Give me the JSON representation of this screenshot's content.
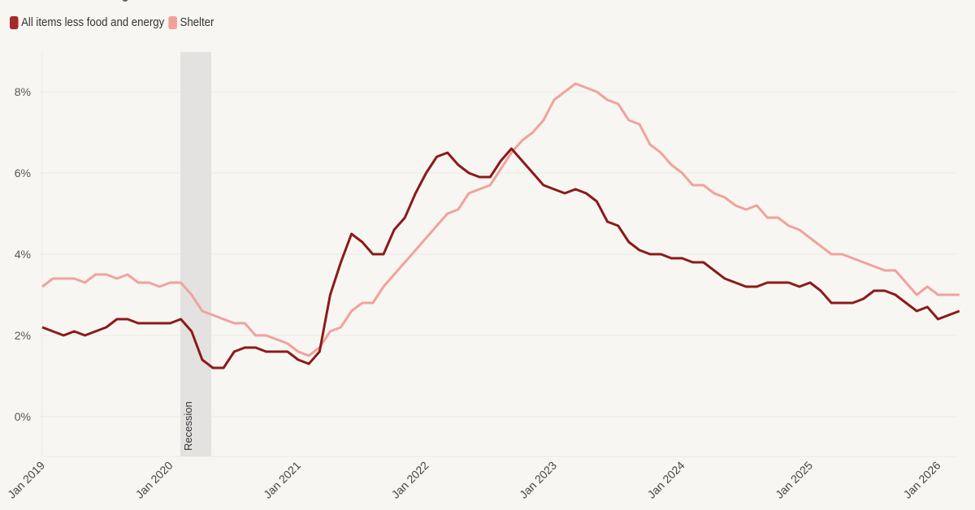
{
  "legend": {
    "items": [
      {
        "label": "All items less food and energy",
        "color": "#a52a2a"
      },
      {
        "label": "Shelter",
        "color": "#f4a09a"
      }
    ]
  },
  "annotations": {
    "recession_label": "Recession"
  },
  "chart_data": {
    "type": "line",
    "title": "",
    "xlabel": "",
    "ylabel": "",
    "ylim": [
      -1,
      9
    ],
    "y_ticks": [
      "0%",
      "2%",
      "4%",
      "6%",
      "8%"
    ],
    "x_ticks": [
      "Jan 2019",
      "Jan 2020",
      "Jan 2021",
      "Jan 2022",
      "Jan 2023",
      "Jan 2024",
      "Jan 2025",
      "Jan 2026"
    ],
    "grid": "horizontal",
    "legend_position": "top-left",
    "shaded_regions": [
      {
        "label": "Recession",
        "start": "Feb 2020",
        "end": "Apr 2020"
      }
    ],
    "x_start": "Jan 2019",
    "x_frequency": "monthly",
    "series": [
      {
        "name": "All items less food and energy",
        "color": "#8b1a1a",
        "values": [
          2.2,
          2.1,
          2.0,
          2.1,
          2.0,
          2.1,
          2.2,
          2.4,
          2.4,
          2.3,
          2.3,
          2.3,
          2.3,
          2.4,
          2.1,
          1.4,
          1.2,
          1.2,
          1.6,
          1.7,
          1.7,
          1.6,
          1.6,
          1.6,
          1.4,
          1.3,
          1.6,
          3.0,
          3.8,
          4.5,
          4.3,
          4.0,
          4.0,
          4.6,
          4.9,
          5.5,
          6.0,
          6.4,
          6.5,
          6.2,
          6.0,
          5.9,
          5.9,
          6.3,
          6.6,
          6.3,
          6.0,
          5.7,
          5.6,
          5.5,
          5.6,
          5.5,
          5.3,
          4.8,
          4.7,
          4.3,
          4.1,
          4.0,
          4.0,
          3.9,
          3.9,
          3.8,
          3.8,
          3.6,
          3.4,
          3.3,
          3.2,
          3.2,
          3.3,
          3.3,
          3.3,
          3.2,
          3.3,
          3.1,
          2.8,
          2.8,
          2.8,
          2.9,
          3.1,
          3.1,
          3.0,
          2.8,
          2.6,
          2.7,
          2.4,
          2.5,
          2.6
        ]
      },
      {
        "name": "Shelter",
        "color": "#f0a39c",
        "values": [
          3.2,
          3.4,
          3.4,
          3.4,
          3.3,
          3.5,
          3.5,
          3.4,
          3.5,
          3.3,
          3.3,
          3.2,
          3.3,
          3.3,
          3.0,
          2.6,
          2.5,
          2.4,
          2.3,
          2.3,
          2.0,
          2.0,
          1.9,
          1.8,
          1.6,
          1.5,
          1.7,
          2.1,
          2.2,
          2.6,
          2.8,
          2.8,
          3.2,
          3.5,
          3.8,
          4.1,
          4.4,
          4.7,
          5.0,
          5.1,
          5.5,
          5.6,
          5.7,
          6.1,
          6.5,
          6.8,
          7.0,
          7.3,
          7.8,
          8.0,
          8.2,
          8.1,
          8.0,
          7.8,
          7.7,
          7.3,
          7.2,
          6.7,
          6.5,
          6.2,
          6.0,
          5.7,
          5.7,
          5.5,
          5.4,
          5.2,
          5.1,
          5.2,
          4.9,
          4.9,
          4.7,
          4.6,
          4.4,
          4.2,
          4.0,
          4.0,
          3.9,
          3.8,
          3.7,
          3.6,
          3.6,
          3.3,
          3.0,
          3.2,
          3.0,
          3.0,
          3.0
        ]
      }
    ]
  }
}
